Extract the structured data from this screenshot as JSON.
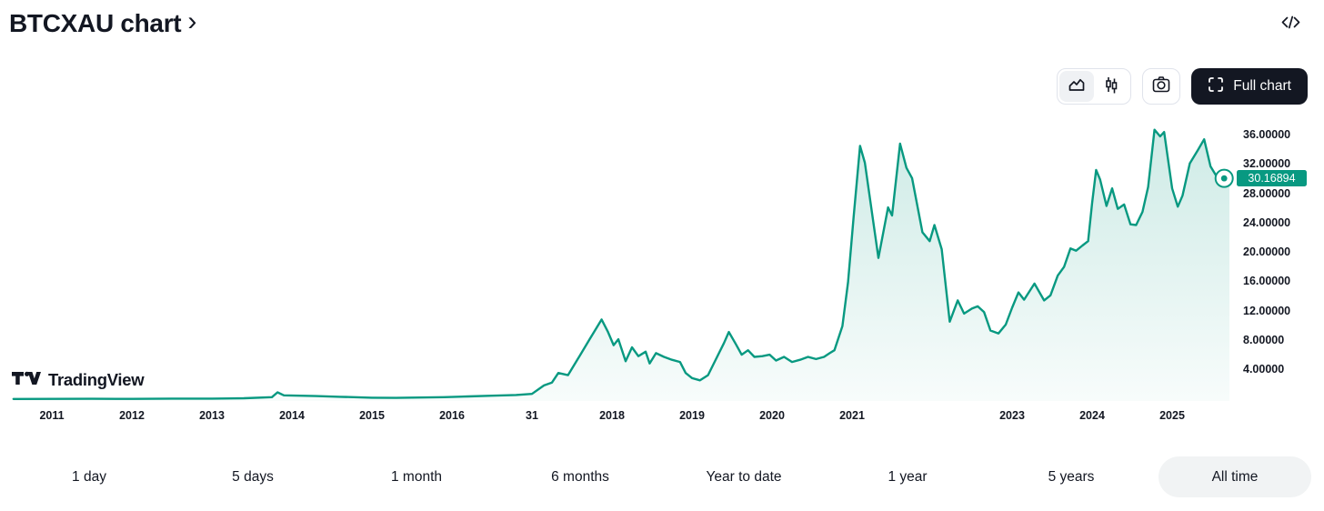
{
  "header": {
    "title": "BTCXAU chart",
    "chevron": "›"
  },
  "toolbar": {
    "full_chart_label": "Full chart"
  },
  "branding": {
    "logo_text": "TradingView"
  },
  "price_badge": {
    "value": "30.16894"
  },
  "range_buttons": [
    {
      "label": "1 day",
      "selected": false
    },
    {
      "label": "5 days",
      "selected": false
    },
    {
      "label": "1 month",
      "selected": false
    },
    {
      "label": "6 months",
      "selected": false
    },
    {
      "label": "Year to date",
      "selected": false
    },
    {
      "label": "1 year",
      "selected": false
    },
    {
      "label": "5 years",
      "selected": false
    },
    {
      "label": "All time",
      "selected": true
    }
  ],
  "colors": {
    "accent": "#089981",
    "text": "#131722",
    "border": "#e0e3eb",
    "badge_bg": "#089981",
    "full_chart_bg": "#131722",
    "selected_pill_bg": "#f1f3f4"
  },
  "chart_data": {
    "type": "area",
    "title": "BTCXAU all-time price ratio",
    "legend": "none",
    "grid": false,
    "xlim": [
      2010.5,
      2025.8
    ],
    "ylim": [
      0,
      38
    ],
    "last_value": 30.16894,
    "y_ticks": [
      {
        "label": "36.00000",
        "value": 36
      },
      {
        "label": "32.00000",
        "value": 32
      },
      {
        "label": "28.00000",
        "value": 28
      },
      {
        "label": "24.00000",
        "value": 24
      },
      {
        "label": "20.00000",
        "value": 20
      },
      {
        "label": "16.00000",
        "value": 16
      },
      {
        "label": "12.00000",
        "value": 12
      },
      {
        "label": "8.00000",
        "value": 8
      },
      {
        "label": "4.00000",
        "value": 4
      }
    ],
    "x_ticks": [
      {
        "label": "2011",
        "year": 2011
      },
      {
        "label": "2012",
        "year": 2012
      },
      {
        "label": "2013",
        "year": 2013
      },
      {
        "label": "2014",
        "year": 2014
      },
      {
        "label": "2015",
        "year": 2015
      },
      {
        "label": "2016",
        "year": 2016
      },
      {
        "label": "31",
        "year": 2017
      },
      {
        "label": "2018",
        "year": 2018
      },
      {
        "label": "2019",
        "year": 2019
      },
      {
        "label": "2020",
        "year": 2020
      },
      {
        "label": "2021",
        "year": 2021
      },
      {
        "label": "2023",
        "year": 2023
      },
      {
        "label": "2024",
        "year": 2024
      },
      {
        "label": "2025",
        "year": 2025
      }
    ],
    "series": [
      {
        "name": "BTCXAU",
        "points": [
          [
            2010.52,
            0.05
          ],
          [
            2011.5,
            0.08
          ],
          [
            2012.0,
            0.06
          ],
          [
            2012.5,
            0.1
          ],
          [
            2013.0,
            0.1
          ],
          [
            2013.4,
            0.15
          ],
          [
            2013.75,
            0.3
          ],
          [
            2013.82,
            0.95
          ],
          [
            2013.9,
            0.55
          ],
          [
            2014.1,
            0.5
          ],
          [
            2014.3,
            0.45
          ],
          [
            2014.6,
            0.35
          ],
          [
            2015.0,
            0.22
          ],
          [
            2015.3,
            0.2
          ],
          [
            2015.6,
            0.25
          ],
          [
            2015.9,
            0.3
          ],
          [
            2016.2,
            0.4
          ],
          [
            2016.5,
            0.5
          ],
          [
            2016.8,
            0.6
          ],
          [
            2017.0,
            0.75
          ],
          [
            2017.15,
            1.9
          ],
          [
            2017.25,
            2.3
          ],
          [
            2017.33,
            3.6
          ],
          [
            2017.45,
            3.3
          ],
          [
            2017.6,
            6.0
          ],
          [
            2017.72,
            8.2
          ],
          [
            2017.87,
            10.9
          ],
          [
            2017.95,
            9.2
          ],
          [
            2018.02,
            7.4
          ],
          [
            2018.08,
            8.2
          ],
          [
            2018.17,
            5.2
          ],
          [
            2018.25,
            7.1
          ],
          [
            2018.33,
            5.9
          ],
          [
            2018.42,
            6.5
          ],
          [
            2018.47,
            4.9
          ],
          [
            2018.55,
            6.3
          ],
          [
            2018.65,
            5.8
          ],
          [
            2018.75,
            5.4
          ],
          [
            2018.85,
            5.1
          ],
          [
            2018.92,
            3.6
          ],
          [
            2019.0,
            2.9
          ],
          [
            2019.1,
            2.6
          ],
          [
            2019.2,
            3.3
          ],
          [
            2019.3,
            5.5
          ],
          [
            2019.4,
            7.7
          ],
          [
            2019.46,
            9.2
          ],
          [
            2019.55,
            7.5
          ],
          [
            2019.62,
            6.1
          ],
          [
            2019.7,
            6.7
          ],
          [
            2019.78,
            5.8
          ],
          [
            2019.88,
            5.9
          ],
          [
            2019.97,
            6.1
          ],
          [
            2020.05,
            5.3
          ],
          [
            2020.15,
            5.8
          ],
          [
            2020.25,
            5.1
          ],
          [
            2020.35,
            5.4
          ],
          [
            2020.45,
            5.8
          ],
          [
            2020.55,
            5.5
          ],
          [
            2020.65,
            5.8
          ],
          [
            2020.72,
            6.3
          ],
          [
            2020.78,
            6.7
          ],
          [
            2020.88,
            10.0
          ],
          [
            2020.95,
            16.0
          ],
          [
            2021.02,
            25.0
          ],
          [
            2021.1,
            34.6
          ],
          [
            2021.16,
            32.3
          ],
          [
            2021.33,
            19.3
          ],
          [
            2021.45,
            26.2
          ],
          [
            2021.5,
            25.1
          ],
          [
            2021.6,
            34.9
          ],
          [
            2021.68,
            31.6
          ],
          [
            2021.75,
            30.2
          ],
          [
            2021.88,
            22.8
          ],
          [
            2021.97,
            21.6
          ],
          [
            2022.03,
            23.8
          ],
          [
            2022.12,
            20.5
          ],
          [
            2022.22,
            10.6
          ],
          [
            2022.32,
            13.5
          ],
          [
            2022.4,
            11.7
          ],
          [
            2022.5,
            12.4
          ],
          [
            2022.57,
            12.7
          ],
          [
            2022.65,
            11.9
          ],
          [
            2022.73,
            9.4
          ],
          [
            2022.83,
            9.0
          ],
          [
            2022.92,
            10.2
          ],
          [
            2023.0,
            12.5
          ],
          [
            2023.08,
            14.6
          ],
          [
            2023.15,
            13.6
          ],
          [
            2023.28,
            15.8
          ],
          [
            2023.4,
            13.5
          ],
          [
            2023.48,
            14.2
          ],
          [
            2023.57,
            16.9
          ],
          [
            2023.65,
            18.1
          ],
          [
            2023.73,
            20.6
          ],
          [
            2023.8,
            20.3
          ],
          [
            2023.88,
            21.0
          ],
          [
            2023.95,
            21.6
          ],
          [
            2024.0,
            26.8
          ],
          [
            2024.05,
            31.3
          ],
          [
            2024.1,
            30.0
          ],
          [
            2024.18,
            26.4
          ],
          [
            2024.25,
            28.8
          ],
          [
            2024.32,
            26.0
          ],
          [
            2024.4,
            26.6
          ],
          [
            2024.48,
            23.9
          ],
          [
            2024.55,
            23.8
          ],
          [
            2024.63,
            25.6
          ],
          [
            2024.7,
            29.0
          ],
          [
            2024.78,
            36.8
          ],
          [
            2024.85,
            35.9
          ],
          [
            2024.9,
            36.5
          ],
          [
            2025.0,
            28.8
          ],
          [
            2025.07,
            26.3
          ],
          [
            2025.13,
            27.8
          ],
          [
            2025.22,
            32.2
          ],
          [
            2025.32,
            34.0
          ],
          [
            2025.4,
            35.5
          ],
          [
            2025.48,
            31.8
          ],
          [
            2025.58,
            30.0
          ],
          [
            2025.65,
            30.16894
          ]
        ]
      }
    ]
  }
}
